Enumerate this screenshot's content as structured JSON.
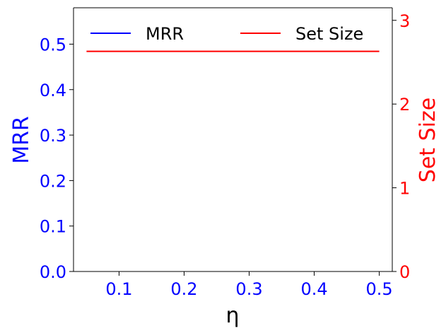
{
  "chart_data": {
    "type": "line",
    "title": "",
    "xlabel": "η",
    "ylabel_left": "MRR",
    "ylabel_right": "Set Size",
    "xlim": [
      0.03,
      0.52
    ],
    "ylim_left": [
      0.0,
      0.58
    ],
    "ylim_right": [
      0,
      3.15
    ],
    "x_ticks": [
      0.1,
      0.2,
      0.3,
      0.4,
      0.5
    ],
    "x_tick_labels": [
      "0.1",
      "0.2",
      "0.3",
      "0.4",
      "0.5"
    ],
    "y_left_ticks": [
      0.0,
      0.1,
      0.2,
      0.3,
      0.4,
      0.5
    ],
    "y_left_tick_labels": [
      "0.0",
      "0.1",
      "0.2",
      "0.3",
      "0.4",
      "0.5"
    ],
    "y_right_ticks": [
      0,
      1,
      2,
      3
    ],
    "y_right_tick_labels": [
      "0",
      "1",
      "2",
      "3"
    ],
    "grid": false,
    "legend_position": "top",
    "colors": {
      "left_axis": "#0000ff",
      "right_axis": "#ff0000",
      "frame": "#000000"
    },
    "series": [
      {
        "name": "MRR",
        "axis": "left",
        "color": "#0000ff",
        "x": [],
        "values": []
      },
      {
        "name": "Set Size",
        "axis": "right",
        "color": "#ff0000",
        "x": [
          0.05,
          0.1,
          0.15,
          0.2,
          0.25,
          0.3,
          0.35,
          0.4,
          0.45,
          0.5
        ],
        "values": [
          2.63,
          2.63,
          2.63,
          2.63,
          2.63,
          2.63,
          2.63,
          2.63,
          2.63,
          2.63
        ]
      }
    ]
  }
}
